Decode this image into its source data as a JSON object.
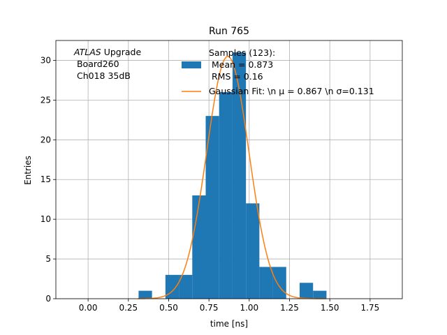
{
  "chart_data": {
    "type": "bar",
    "title": "Run 765",
    "xlabel": "time [ns]",
    "ylabel": "Entries",
    "xlim": [
      -0.2,
      1.95
    ],
    "ylim": [
      0,
      32.5
    ],
    "xticks": [
      "0.00",
      "0.25",
      "0.50",
      "0.75",
      "1.00",
      "1.25",
      "1.50",
      "1.75"
    ],
    "xtick_values": [
      0,
      0.25,
      0.5,
      0.75,
      1.0,
      1.25,
      1.5,
      1.75
    ],
    "yticks": [
      "0",
      "5",
      "10",
      "15",
      "20",
      "25",
      "30"
    ],
    "ytick_values": [
      0,
      5,
      10,
      15,
      20,
      25,
      30
    ],
    "grid": true,
    "annotation": {
      "italic": "ATLAS",
      "rest": " Upgrade",
      "line2": " Board260",
      "line3": " Ch018 35dB"
    },
    "histogram": {
      "bin_width": 0.0833,
      "bins": [
        {
          "x0": 0.3133,
          "count": 1
        },
        {
          "x0": 0.3966,
          "count": 0
        },
        {
          "x0": 0.4799,
          "count": 3
        },
        {
          "x0": 0.5632,
          "count": 3
        },
        {
          "x0": 0.6465,
          "count": 13
        },
        {
          "x0": 0.7298,
          "count": 23
        },
        {
          "x0": 0.8131,
          "count": 26
        },
        {
          "x0": 0.8964,
          "count": 31
        },
        {
          "x0": 0.9797,
          "count": 12
        },
        {
          "x0": 1.063,
          "count": 4
        },
        {
          "x0": 1.1463,
          "count": 4
        },
        {
          "x0": 1.2296,
          "count": 0
        },
        {
          "x0": 1.3129,
          "count": 2
        },
        {
          "x0": 1.3962,
          "count": 1
        }
      ],
      "color": "#1f77b4"
    },
    "gaussian_fit": {
      "mu": 0.867,
      "sigma": 0.131,
      "amplitude": 30.5,
      "x_range": [
        0.31,
        1.48
      ],
      "color": "#ff7f0e"
    },
    "legend": {
      "placement": "top-right",
      "entries": [
        {
          "kind": "bar",
          "color": "#1f77b4",
          "lines": [
            "Samples (123):",
            " Mean = 0.873",
            " RMS = 0.16"
          ]
        },
        {
          "kind": "line",
          "color": "#ff7f0e",
          "label": "Gaussian Fit: \\n μ = 0.867 \\n σ=0.131"
        }
      ]
    }
  }
}
